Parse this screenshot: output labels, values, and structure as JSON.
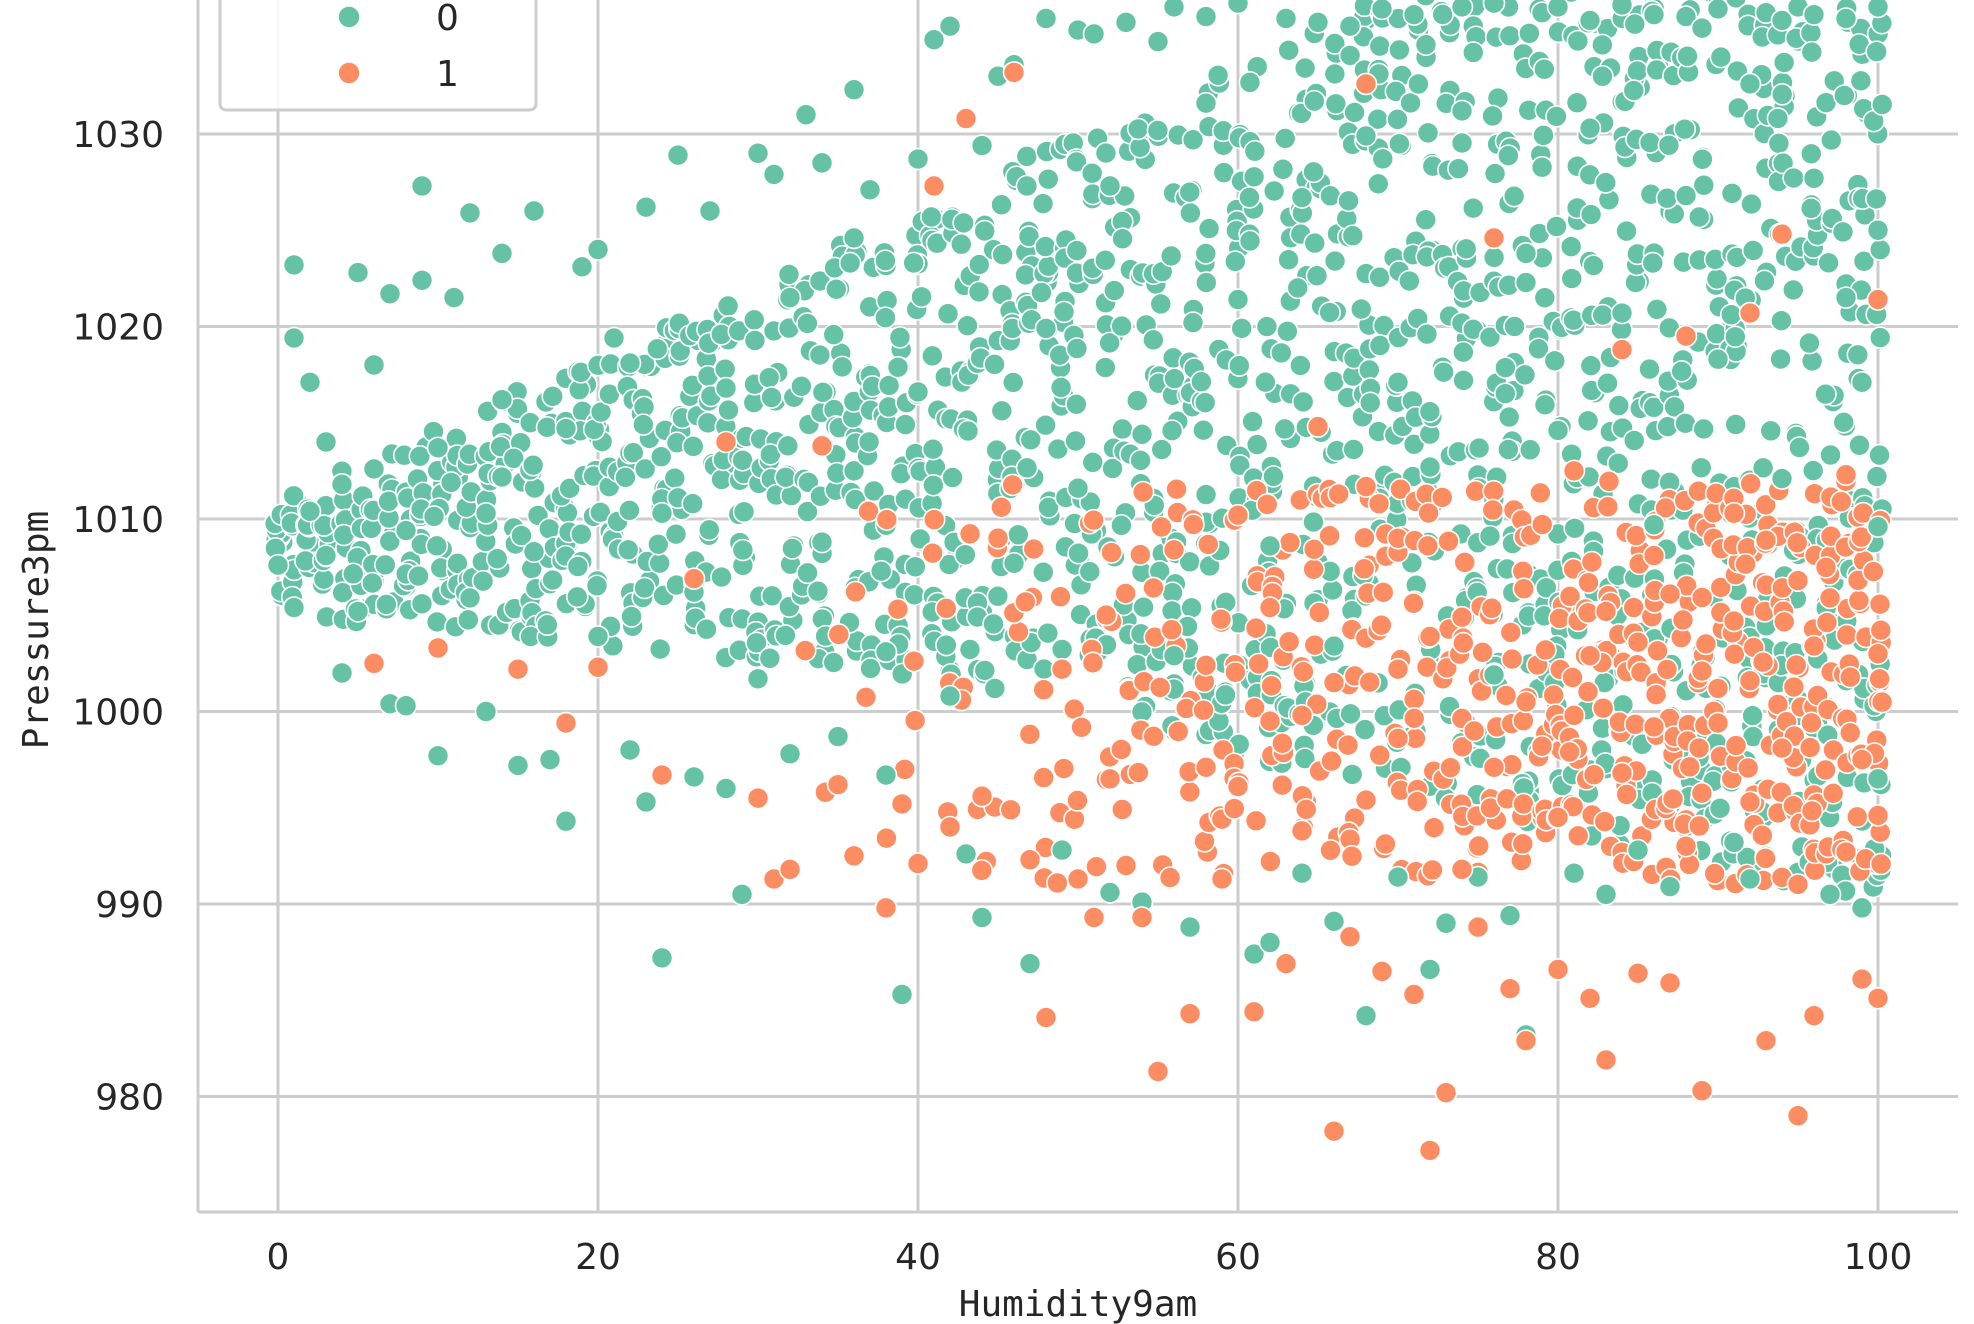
{
  "chart_data": {
    "type": "scatter",
    "xlabel": "Humidity9am",
    "ylabel": "Pressure3pm",
    "xlim": [
      -5,
      105
    ],
    "ylim": [
      974,
      1038
    ],
    "x_ticks": [
      0,
      20,
      40,
      60,
      80,
      100
    ],
    "y_ticks": [
      980,
      990,
      1000,
      1010,
      1020,
      1030
    ],
    "x_tick_labels": [
      "0",
      "20",
      "40",
      "60",
      "80",
      "100"
    ],
    "y_tick_labels": [
      "980",
      "990",
      "1000",
      "1010",
      "1020",
      "1030"
    ],
    "grid": true,
    "legend_placement": "top-left",
    "colors": {
      "0": "#66c2a5",
      "1": "#fc8d62"
    },
    "series": [
      {
        "name": "0",
        "color": "#66c2a5",
        "points": [
          [
            0,
            1007.6
          ],
          [
            1,
            1023.2
          ],
          [
            1,
            1019.4
          ],
          [
            1,
            1005.4
          ],
          [
            2,
            1017.1
          ],
          [
            3,
            1014
          ],
          [
            4,
            1002
          ],
          [
            5,
            1022.8
          ],
          [
            6,
            1018
          ],
          [
            7,
            1021.7
          ],
          [
            7,
            1000.4
          ],
          [
            8,
            1000.3
          ],
          [
            9,
            1027.3
          ],
          [
            9,
            1022.4
          ],
          [
            10,
            997.7
          ],
          [
            11,
            1021.5
          ],
          [
            12,
            1025.9
          ],
          [
            13,
            1000
          ],
          [
            14,
            1023.8
          ],
          [
            15,
            997.2
          ],
          [
            16,
            1026
          ],
          [
            17,
            997.5
          ],
          [
            18,
            994.3
          ],
          [
            19,
            1023.1
          ],
          [
            20,
            1024
          ],
          [
            21,
            1019.4
          ],
          [
            22,
            998
          ],
          [
            23,
            995.3
          ],
          [
            23,
            1026.2
          ],
          [
            24,
            987.2
          ],
          [
            25,
            1028.9
          ],
          [
            26,
            996.6
          ],
          [
            27,
            1026
          ],
          [
            28,
            996
          ],
          [
            29,
            990.5
          ],
          [
            30,
            1029
          ],
          [
            31,
            1027.9
          ],
          [
            32,
            997.8
          ],
          [
            33,
            1031
          ],
          [
            34,
            1028.5
          ],
          [
            35,
            998.7
          ],
          [
            36,
            1032.3
          ],
          [
            37,
            1027.1
          ],
          [
            38,
            996.7
          ],
          [
            39,
            985.3
          ],
          [
            40,
            1028.7
          ],
          [
            41,
            1034.9
          ],
          [
            42,
            1035.6
          ],
          [
            43,
            992.6
          ],
          [
            44,
            989.3
          ],
          [
            45,
            1033
          ],
          [
            46,
            1033.6
          ],
          [
            47,
            986.9
          ],
          [
            48,
            1036
          ],
          [
            49,
            992.8
          ],
          [
            50,
            1035.4
          ],
          [
            51,
            1035.2
          ],
          [
            52,
            990.6
          ],
          [
            53,
            1035.8
          ],
          [
            54,
            990.1
          ],
          [
            55,
            1034.8
          ],
          [
            56,
            1036.6
          ],
          [
            57,
            988.8
          ],
          [
            58,
            1036.1
          ],
          [
            59,
            1037.5
          ],
          [
            60,
            1036.8
          ],
          [
            61,
            987.4
          ],
          [
            62,
            988
          ],
          [
            63,
            1036
          ],
          [
            64,
            991.6
          ],
          [
            65,
            1035.8
          ],
          [
            66,
            989.1
          ],
          [
            67,
            1035.6
          ],
          [
            68,
            984.2
          ],
          [
            69,
            1036.5
          ],
          [
            70,
            991.4
          ],
          [
            71,
            1036.2
          ],
          [
            72,
            986.6
          ],
          [
            73,
            989
          ],
          [
            74,
            1036.6
          ],
          [
            75,
            991.4
          ],
          [
            76,
            1036.8
          ],
          [
            77,
            989.4
          ],
          [
            78,
            983.2
          ],
          [
            79,
            1036.3
          ],
          [
            80,
            1036.6
          ],
          [
            81,
            991.6
          ],
          [
            82,
            1035.9
          ],
          [
            83,
            990.5
          ],
          [
            84,
            1036.7
          ],
          [
            85,
            992.8
          ],
          [
            86,
            1036.2
          ],
          [
            87,
            990.9
          ],
          [
            88,
            1036.1
          ],
          [
            89,
            1035.5
          ],
          [
            90,
            1036.5
          ],
          [
            91,
            993.2
          ],
          [
            92,
            991.3
          ],
          [
            93,
            1036.3
          ],
          [
            94,
            1035.9
          ],
          [
            95,
            1036.6
          ],
          [
            96,
            1036.2
          ],
          [
            97,
            990.5
          ],
          [
            98,
            1036
          ],
          [
            99,
            989.8
          ],
          [
            100,
            1036.6
          ],
          [
            100,
            1025
          ],
          [
            100,
            1009.6
          ],
          [
            100,
            996.5
          ],
          [
            2,
            1010.4
          ],
          [
            3,
            1008.1
          ],
          [
            4,
            1011.8
          ],
          [
            5,
            1005.2
          ],
          [
            6,
            1012.6
          ],
          [
            8,
            1009.4
          ],
          [
            10,
            1013.7
          ],
          [
            12,
            1005.9
          ],
          [
            14,
            1016.2
          ],
          [
            16,
            1008.3
          ],
          [
            18,
            1014.7
          ],
          [
            20,
            1003.9
          ],
          [
            22,
            1018.1
          ],
          [
            24,
            1010.3
          ],
          [
            26,
            1006.2
          ],
          [
            28,
            1016.8
          ],
          [
            30,
            1001.7
          ],
          [
            32,
            1021.5
          ],
          [
            34,
            1008.8
          ],
          [
            36,
            1024.6
          ],
          [
            38,
            1003.1
          ],
          [
            40,
            1016.6
          ],
          [
            42,
            1000.8
          ],
          [
            44,
            1029.4
          ],
          [
            46,
            1007.7
          ],
          [
            48,
            1019.9
          ],
          [
            50,
            1011.6
          ],
          [
            52,
            1027.3
          ],
          [
            54,
            1014.4
          ],
          [
            56,
            1002.9
          ],
          [
            58,
            1031.6
          ],
          [
            60,
            1021.4
          ],
          [
            62,
            1008.6
          ],
          [
            64,
            1026.7
          ],
          [
            66,
            1003.4
          ],
          [
            68,
            1029.9
          ],
          [
            70,
            1017.1
          ],
          [
            72,
            1012.7
          ],
          [
            74,
            1031.2
          ],
          [
            76,
            1001.9
          ],
          [
            78,
            1023.8
          ],
          [
            80,
            1014.6
          ],
          [
            82,
            1030.3
          ],
          [
            84,
            1020.7
          ],
          [
            86,
            1009.7
          ],
          [
            88,
            1026.8
          ],
          [
            90,
            1018.3
          ],
          [
            92,
            1032.6
          ],
          [
            94,
            1012.1
          ],
          [
            96,
            1027.7
          ],
          [
            98,
            1021.5
          ],
          [
            99,
            1017.1
          ]
        ]
      },
      {
        "name": "1",
        "color": "#fc8d62",
        "points": [
          [
            6,
            1002.5
          ],
          [
            10,
            1003.3
          ],
          [
            15,
            1002.2
          ],
          [
            18,
            999.4
          ],
          [
            20,
            1002.3
          ],
          [
            24,
            996.7
          ],
          [
            26,
            1006.9
          ],
          [
            28,
            1014
          ],
          [
            30,
            995.5
          ],
          [
            31,
            991.3
          ],
          [
            32,
            991.8
          ],
          [
            34,
            1013.8
          ],
          [
            35,
            996.2
          ],
          [
            36,
            992.5
          ],
          [
            38,
            989.8
          ],
          [
            39,
            995.2
          ],
          [
            40,
            992.1
          ],
          [
            41,
            1027.3
          ],
          [
            42,
            994
          ],
          [
            43,
            1030.8
          ],
          [
            44,
            995.6
          ],
          [
            45,
            1009
          ],
          [
            46,
            1033.2
          ],
          [
            47,
            992.3
          ],
          [
            48,
            984.1
          ],
          [
            49,
            1002.2
          ],
          [
            50,
            991.3
          ],
          [
            51,
            989.3
          ],
          [
            52,
            996.5
          ],
          [
            53,
            992
          ],
          [
            54,
            989.3
          ],
          [
            55,
            981.3
          ],
          [
            56,
            1008.4
          ],
          [
            57,
            984.3
          ],
          [
            58,
            997.1
          ],
          [
            59,
            991.3
          ],
          [
            60,
            1010.2
          ],
          [
            61,
            984.4
          ],
          [
            62,
            1005.4
          ],
          [
            63,
            986.9
          ],
          [
            64,
            999.8
          ],
          [
            65,
            1014.8
          ],
          [
            66,
            978.2
          ],
          [
            67,
            988.3
          ],
          [
            68,
            1032.6
          ],
          [
            69,
            986.5
          ],
          [
            70,
            1002.2
          ],
          [
            71,
            985.3
          ],
          [
            72,
            977.2
          ],
          [
            73,
            980.2
          ],
          [
            74,
            1004.9
          ],
          [
            75,
            988.8
          ],
          [
            76,
            1024.6
          ],
          [
            77,
            985.6
          ],
          [
            78,
            982.9
          ],
          [
            79,
            998.2
          ],
          [
            80,
            986.6
          ],
          [
            81,
            1012.5
          ],
          [
            82,
            985.1
          ],
          [
            83,
            981.9
          ],
          [
            84,
            1018.8
          ],
          [
            85,
            986.4
          ],
          [
            86,
            1008.1
          ],
          [
            87,
            985.9
          ],
          [
            88,
            1019.5
          ],
          [
            89,
            980.3
          ],
          [
            90,
            999.4
          ],
          [
            91,
            1010.3
          ],
          [
            92,
            1020.7
          ],
          [
            93,
            982.9
          ],
          [
            94,
            1024.8
          ],
          [
            95,
            979
          ],
          [
            96,
            984.2
          ],
          [
            97,
            1005.9
          ],
          [
            98,
            1012.3
          ],
          [
            99,
            986.1
          ],
          [
            100,
            985.1
          ],
          [
            100,
            1021.4
          ],
          [
            100,
            1003
          ],
          [
            100,
            994.6
          ],
          [
            58,
            1002.4
          ],
          [
            60,
            996.1
          ],
          [
            62,
            999.5
          ],
          [
            64,
            993.8
          ],
          [
            66,
            1001.5
          ],
          [
            68,
            995.4
          ],
          [
            70,
            998.6
          ],
          [
            72,
            1003.9
          ],
          [
            74,
            991.8
          ],
          [
            76,
            997.1
          ],
          [
            78,
            1000.5
          ],
          [
            80,
            994.5
          ],
          [
            82,
            1002.9
          ],
          [
            84,
            996.8
          ],
          [
            86,
            999.2
          ],
          [
            88,
            993
          ],
          [
            90,
            1001.2
          ],
          [
            92,
            995.3
          ],
          [
            94,
            998.1
          ],
          [
            96,
            1003.4
          ],
          [
            98,
            992.7
          ],
          [
            99,
            997.5
          ],
          [
            95,
            1006.8
          ],
          [
            93,
            1008.9
          ],
          [
            91,
            1004.7
          ],
          [
            89,
            1002.1
          ],
          [
            87,
            1006.1
          ],
          [
            85,
            1003.6
          ],
          [
            83,
            1005.2
          ],
          [
            81,
            999.8
          ]
        ]
      }
    ]
  }
}
